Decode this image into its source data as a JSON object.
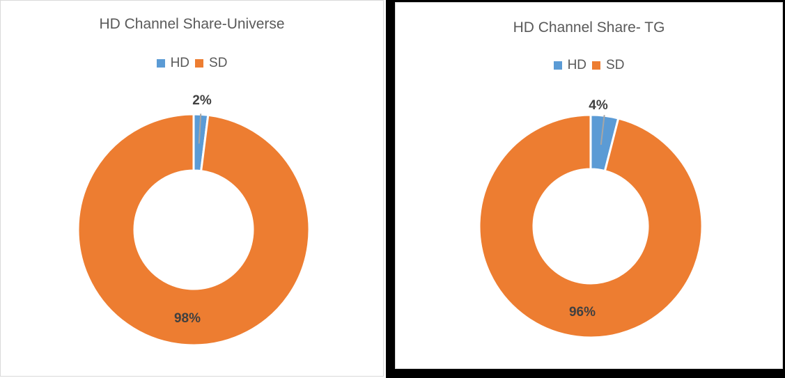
{
  "chart_data": [
    {
      "type": "pie",
      "subtype": "donut",
      "title": "HD Channel Share-Universe",
      "categories": [
        "HD",
        "SD"
      ],
      "values": [
        2,
        98
      ],
      "labels": [
        "2%",
        "98%"
      ],
      "colors": [
        "#5b9bd5",
        "#ed7d31"
      ],
      "legend_position": "top"
    },
    {
      "type": "pie",
      "subtype": "donut",
      "title": "HD Channel Share- TG",
      "categories": [
        "HD",
        "SD"
      ],
      "values": [
        4,
        96
      ],
      "labels": [
        "4%",
        "96%"
      ],
      "colors": [
        "#5b9bd5",
        "#ed7d31"
      ],
      "legend_position": "top"
    }
  ],
  "left": {
    "title": "HD Channel Share-Universe",
    "legend": [
      {
        "label": "HD",
        "color": "#5b9bd5"
      },
      {
        "label": "SD",
        "color": "#ed7d31"
      }
    ],
    "hd_label": "2%",
    "sd_label": "98%"
  },
  "right": {
    "title": "HD Channel Share- TG",
    "legend": [
      {
        "label": "HD",
        "color": "#5b9bd5"
      },
      {
        "label": "SD",
        "color": "#ed7d31"
      }
    ],
    "hd_label": "4%",
    "sd_label": "96%"
  }
}
